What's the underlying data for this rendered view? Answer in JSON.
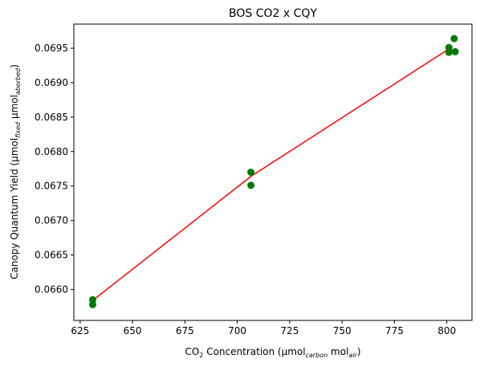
{
  "chart_data": {
    "type": "scatter",
    "title": "BOS CO2 x CQY",
    "xlabel": {
      "prefix": "CO",
      "sub1": "2",
      "mid": " Concentration (μmol",
      "sub2": "carbon",
      "mid2": " mol",
      "sub3": "air",
      "suffix": ")"
    },
    "ylabel": {
      "prefix": "Canopy Quantum Yield (μmol",
      "sub1": "fixed",
      "mid": " μmol",
      "sub2": "aborbed",
      "suffix": ")"
    },
    "xlim": [
      622,
      812
    ],
    "ylim": [
      0.06555,
      0.06985
    ],
    "xticks": [
      625,
      650,
      675,
      700,
      725,
      750,
      775,
      800
    ],
    "yticks": [
      0.066,
      0.0665,
      0.067,
      0.0675,
      0.068,
      0.0685,
      0.069,
      0.0695
    ],
    "ytick_labels": [
      "0.0660",
      "0.0665",
      "0.0670",
      "0.0675",
      "0.0680",
      "0.0685",
      "0.0690",
      "0.0695"
    ],
    "grid": false,
    "points": {
      "color": "#007a00",
      "x": [
        631,
        631,
        706.5,
        706.5,
        801,
        801,
        803.5,
        804
      ],
      "y": [
        0.06585,
        0.06578,
        0.0677,
        0.06751,
        0.06951,
        0.06944,
        0.06964,
        0.06945
      ]
    },
    "fit_line": {
      "color": "#ff0000",
      "x": [
        631,
        706.5,
        802.5
      ],
      "y": [
        0.06584,
        0.06764,
        0.06952
      ]
    }
  }
}
